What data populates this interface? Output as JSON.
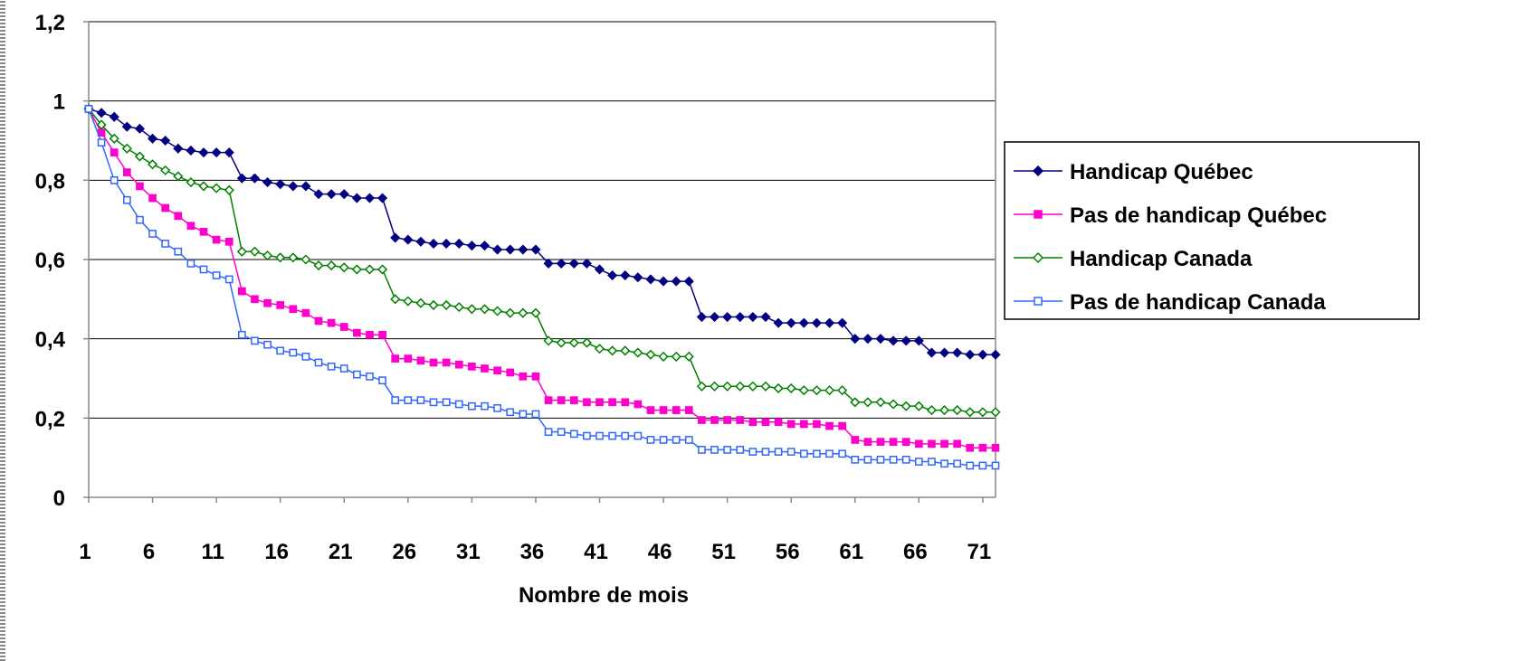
{
  "chart_data": {
    "type": "line",
    "title": "",
    "xlabel": "Nombre de mois",
    "ylabel": "",
    "ylim": [
      0,
      1.2
    ],
    "yticks": [
      0,
      0.2,
      0.4,
      0.6,
      0.8,
      1,
      1.2
    ],
    "ytick_labels": [
      "0",
      "0,2",
      "0,4",
      "0,6",
      "0,8",
      "1",
      "1,2"
    ],
    "xlim": [
      1,
      72
    ],
    "xticks": [
      1,
      6,
      11,
      16,
      21,
      26,
      31,
      36,
      41,
      46,
      51,
      56,
      61,
      66,
      71
    ],
    "xtick_labels": [
      "1",
      "6",
      "11",
      "16",
      "21",
      "26",
      "31",
      "36",
      "41",
      "46",
      "51",
      "56",
      "61",
      "66",
      "71"
    ],
    "grid": "horizontal",
    "legend_position": "right",
    "x": [
      1,
      2,
      3,
      4,
      5,
      6,
      7,
      8,
      9,
      10,
      11,
      12,
      13,
      14,
      15,
      16,
      17,
      18,
      19,
      20,
      21,
      22,
      23,
      24,
      25,
      26,
      27,
      28,
      29,
      30,
      31,
      32,
      33,
      34,
      35,
      36,
      37,
      38,
      39,
      40,
      41,
      42,
      43,
      44,
      45,
      46,
      47,
      48,
      49,
      50,
      51,
      52,
      53,
      54,
      55,
      56,
      57,
      58,
      59,
      60,
      61,
      62,
      63,
      64,
      65,
      66,
      67,
      68,
      69,
      70,
      71,
      72
    ],
    "series": [
      {
        "name": "Handicap Québec",
        "color": "#000080",
        "marker": "diamond-filled",
        "values": [
          0.98,
          0.97,
          0.96,
          0.935,
          0.93,
          0.905,
          0.9,
          0.88,
          0.875,
          0.87,
          0.87,
          0.87,
          0.805,
          0.805,
          0.795,
          0.79,
          0.785,
          0.785,
          0.765,
          0.765,
          0.765,
          0.755,
          0.755,
          0.755,
          0.655,
          0.65,
          0.645,
          0.64,
          0.64,
          0.64,
          0.635,
          0.635,
          0.625,
          0.625,
          0.625,
          0.625,
          0.59,
          0.59,
          0.59,
          0.59,
          0.575,
          0.56,
          0.56,
          0.555,
          0.55,
          0.545,
          0.545,
          0.545,
          0.455,
          0.455,
          0.455,
          0.455,
          0.455,
          0.455,
          0.44,
          0.44,
          0.44,
          0.44,
          0.44,
          0.44,
          0.4,
          0.4,
          0.4,
          0.395,
          0.395,
          0.395,
          0.365,
          0.365,
          0.365,
          0.36,
          0.36,
          0.36
        ]
      },
      {
        "name": "Pas de handicap Québec",
        "color": "#ff00cc",
        "marker": "square-filled",
        "values": [
          0.98,
          0.92,
          0.87,
          0.82,
          0.785,
          0.755,
          0.73,
          0.71,
          0.685,
          0.67,
          0.65,
          0.645,
          0.52,
          0.5,
          0.49,
          0.485,
          0.475,
          0.465,
          0.445,
          0.44,
          0.43,
          0.415,
          0.41,
          0.41,
          0.35,
          0.35,
          0.345,
          0.34,
          0.34,
          0.335,
          0.33,
          0.325,
          0.32,
          0.315,
          0.305,
          0.305,
          0.245,
          0.245,
          0.245,
          0.24,
          0.24,
          0.24,
          0.24,
          0.235,
          0.22,
          0.22,
          0.22,
          0.22,
          0.195,
          0.195,
          0.195,
          0.195,
          0.19,
          0.19,
          0.19,
          0.185,
          0.185,
          0.185,
          0.18,
          0.18,
          0.145,
          0.14,
          0.14,
          0.14,
          0.14,
          0.135,
          0.135,
          0.135,
          0.135,
          0.125,
          0.125,
          0.125
        ]
      },
      {
        "name": "Handicap Canada",
        "color": "#008000",
        "marker": "diamond-open",
        "values": [
          0.98,
          0.94,
          0.905,
          0.88,
          0.86,
          0.84,
          0.825,
          0.81,
          0.795,
          0.785,
          0.78,
          0.775,
          0.62,
          0.62,
          0.61,
          0.605,
          0.605,
          0.6,
          0.585,
          0.585,
          0.58,
          0.575,
          0.575,
          0.575,
          0.5,
          0.495,
          0.49,
          0.485,
          0.485,
          0.48,
          0.475,
          0.475,
          0.47,
          0.465,
          0.465,
          0.465,
          0.395,
          0.39,
          0.39,
          0.39,
          0.375,
          0.37,
          0.37,
          0.365,
          0.36,
          0.355,
          0.355,
          0.355,
          0.28,
          0.28,
          0.28,
          0.28,
          0.28,
          0.28,
          0.275,
          0.275,
          0.27,
          0.27,
          0.27,
          0.27,
          0.24,
          0.24,
          0.24,
          0.235,
          0.23,
          0.23,
          0.22,
          0.22,
          0.22,
          0.215,
          0.215,
          0.215
        ]
      },
      {
        "name": "Pas de handicap Canada",
        "color": "#3366ff",
        "marker": "square-open",
        "values": [
          0.98,
          0.895,
          0.8,
          0.75,
          0.7,
          0.665,
          0.64,
          0.62,
          0.59,
          0.575,
          0.56,
          0.55,
          0.41,
          0.395,
          0.385,
          0.37,
          0.365,
          0.355,
          0.34,
          0.33,
          0.325,
          0.31,
          0.305,
          0.295,
          0.245,
          0.245,
          0.245,
          0.24,
          0.24,
          0.235,
          0.23,
          0.23,
          0.225,
          0.215,
          0.21,
          0.21,
          0.165,
          0.165,
          0.16,
          0.155,
          0.155,
          0.155,
          0.155,
          0.155,
          0.145,
          0.145,
          0.145,
          0.145,
          0.12,
          0.12,
          0.12,
          0.12,
          0.115,
          0.115,
          0.115,
          0.115,
          0.11,
          0.11,
          0.11,
          0.11,
          0.095,
          0.095,
          0.095,
          0.095,
          0.095,
          0.09,
          0.09,
          0.085,
          0.085,
          0.08,
          0.08,
          0.08
        ]
      }
    ]
  }
}
